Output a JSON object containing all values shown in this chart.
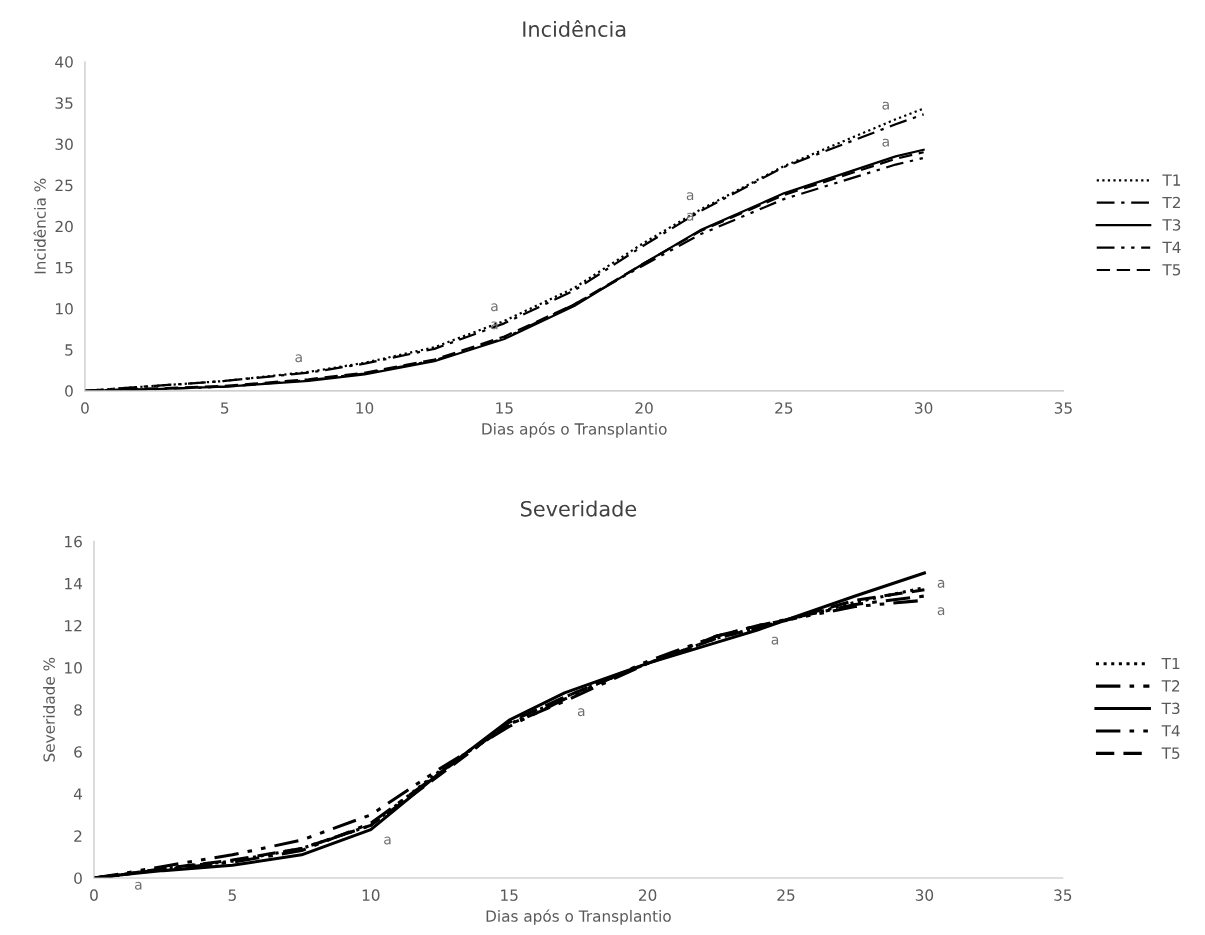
{
  "chart_data": [
    {
      "type": "line",
      "title": "Incidência",
      "xlabel": "Dias após o Transplantio",
      "ylabel": "Incidência %",
      "x": [
        0,
        2.5,
        5,
        8,
        10,
        12.5,
        15,
        17.5,
        20,
        22,
        25,
        29,
        30
      ],
      "xlim": [
        0,
        35
      ],
      "xticks": [
        0,
        5,
        10,
        15,
        20,
        25,
        30,
        35
      ],
      "ylim": [
        0,
        40
      ],
      "yticks": [
        0,
        5,
        10,
        15,
        20,
        25,
        30,
        35,
        40
      ],
      "grid": false,
      "legend": "right",
      "marker": "none",
      "series": [
        {
          "name": "T1",
          "color": "#000000",
          "line_style": "dotted",
          "values": [
            0,
            0.6,
            1.2,
            2.3,
            3.4,
            5.3,
            8.5,
            12.5,
            18,
            22,
            27.3,
            33,
            34.3
          ]
        },
        {
          "name": "T2",
          "color": "#000000",
          "line_style": "dashdot",
          "values": [
            0,
            0.6,
            1.2,
            2.2,
            3.3,
            5.1,
            8.2,
            12.2,
            17.7,
            21.8,
            27.2,
            32.4,
            33.6
          ]
        },
        {
          "name": "T3",
          "color": "#000000",
          "line_style": "solid",
          "values": [
            0,
            0.2,
            0.5,
            1.2,
            2.0,
            3.6,
            6.3,
            10.3,
            15.5,
            19.5,
            24,
            28.5,
            29.3
          ]
        },
        {
          "name": "T4",
          "color": "#000000",
          "line_style": "dashdotdot",
          "values": [
            0,
            0.2,
            0.5,
            1.3,
            2.1,
            3.7,
            6.4,
            10.5,
            15.3,
            19.0,
            23.3,
            27.5,
            28.3
          ]
        },
        {
          "name": "T5",
          "color": "#000000",
          "line_style": "dashed",
          "values": [
            0,
            0.3,
            0.6,
            1.4,
            2.2,
            3.8,
            6.6,
            10.5,
            15.5,
            19.4,
            23.8,
            28.2,
            29
          ]
        }
      ],
      "annotations": [
        {
          "text": "a",
          "x": 8,
          "y": 2.3
        },
        {
          "text": "a",
          "x": 15,
          "y": 8.5
        },
        {
          "text": "a",
          "x": 15,
          "y": 6.3
        },
        {
          "text": "a",
          "x": 22,
          "y": 22
        },
        {
          "text": "a",
          "x": 22,
          "y": 19.5
        },
        {
          "text": "a",
          "x": 29,
          "y": 33
        },
        {
          "text": "a",
          "x": 29,
          "y": 28.5
        }
      ]
    },
    {
      "type": "line",
      "title": "Severidade",
      "xlabel": "Dias após o Transplantio",
      "ylabel": "Severidade %",
      "x": [
        0,
        1,
        2.5,
        5,
        7.5,
        10,
        12.5,
        15,
        17,
        20,
        22.5,
        24,
        27.5,
        30
      ],
      "xlim": [
        0,
        35
      ],
      "xticks": [
        0,
        5,
        10,
        15,
        20,
        25,
        30,
        35
      ],
      "ylim": [
        0,
        16
      ],
      "yticks": [
        0,
        2,
        4,
        6,
        8,
        10,
        12,
        14,
        16
      ],
      "grid": false,
      "legend": "right",
      "marker": "none",
      "series": [
        {
          "name": "T1",
          "color": "#000000",
          "line_style": "dotted",
          "values": [
            0,
            0.15,
            0.45,
            0.8,
            1.4,
            2.5,
            5.1,
            7.3,
            8.6,
            10.2,
            11.4,
            11.9,
            13.1,
            13.8
          ]
        },
        {
          "name": "T2",
          "color": "#000000",
          "line_style": "dashdot",
          "values": [
            0,
            0.15,
            0.4,
            0.75,
            1.3,
            2.6,
            5.0,
            7.3,
            8.4,
            10.2,
            11.5,
            12.0,
            13.0,
            13.4
          ]
        },
        {
          "name": "T3",
          "color": "#000000",
          "line_style": "solid",
          "values": [
            0,
            0.15,
            0.35,
            0.6,
            1.1,
            2.3,
            5.0,
            7.5,
            8.8,
            10.2,
            11.2,
            11.8,
            13.4,
            14.5
          ]
        },
        {
          "name": "T4",
          "color": "#000000",
          "line_style": "dashdotdot",
          "values": [
            0,
            0.2,
            0.55,
            1.1,
            1.8,
            3.0,
            5.2,
            7.2,
            8.5,
            10.3,
            11.5,
            12.0,
            12.9,
            13.2
          ]
        },
        {
          "name": "T5",
          "color": "#000000",
          "line_style": "dashed",
          "values": [
            0,
            0.15,
            0.45,
            0.85,
            1.4,
            2.5,
            4.9,
            7.4,
            8.6,
            10.2,
            11.4,
            11.9,
            13.2,
            13.7
          ]
        }
      ],
      "annotations": [
        {
          "text": "a",
          "x": 1,
          "y": 0.15
        },
        {
          "text": "a",
          "x": 10,
          "y": 2.3
        },
        {
          "text": "a",
          "x": 17,
          "y": 8.4
        },
        {
          "text": "a",
          "x": 24,
          "y": 11.8
        },
        {
          "text": "a",
          "x": 30,
          "y": 14.5
        },
        {
          "text": "a",
          "x": 30,
          "y": 13.2
        }
      ]
    }
  ]
}
